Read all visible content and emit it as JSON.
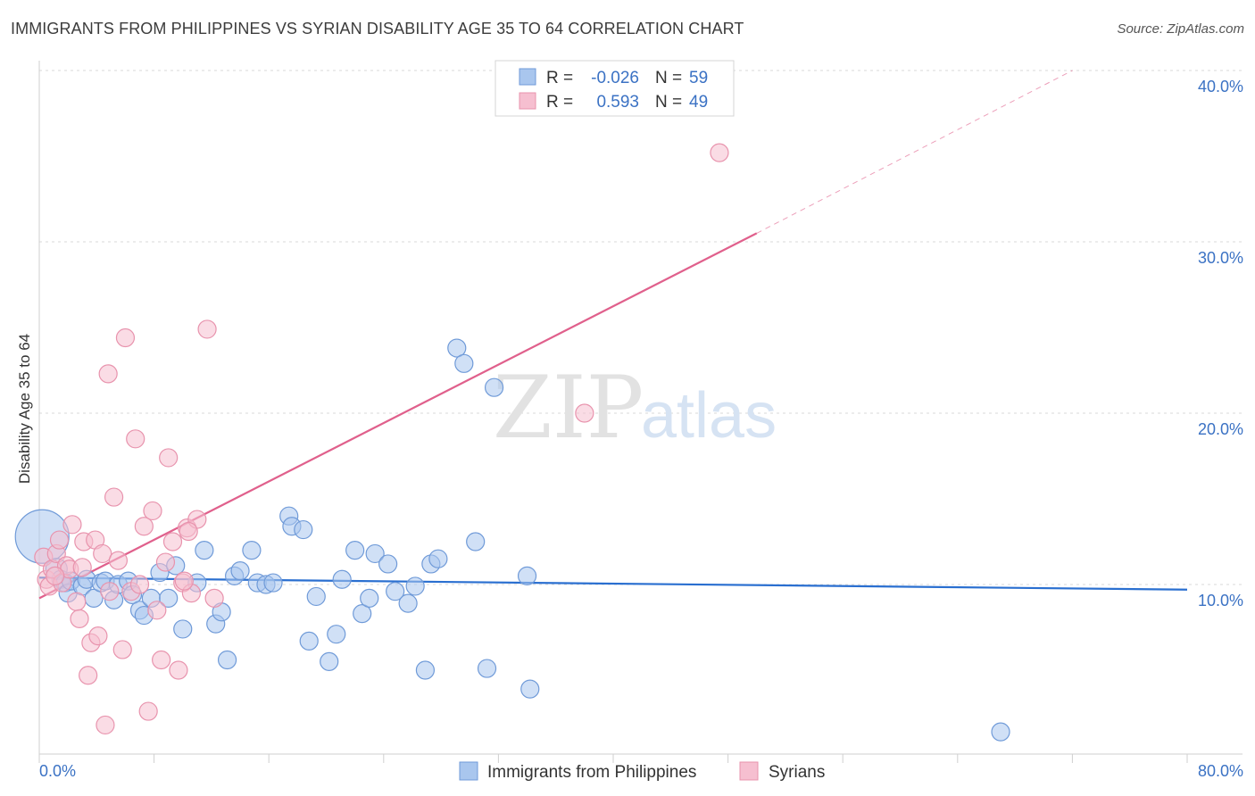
{
  "title": "IMMIGRANTS FROM PHILIPPINES VS SYRIAN DISABILITY AGE 35 TO 64 CORRELATION CHART",
  "source": "Source: ZipAtlas.com",
  "watermark": {
    "part1": "ZIP",
    "part2": "atlas"
  },
  "colors": {
    "blue_fill": "#a9c6ee",
    "blue_stroke": "#6f9ad8",
    "blue_line": "#2a6fd0",
    "pink_fill": "#f6bfd0",
    "pink_stroke": "#e893ad",
    "pink_line": "#e0608c",
    "grid": "#d8d8d8",
    "tick_text": "#3b72c4"
  },
  "legend": {
    "rows": [
      {
        "r_label": "R =",
        "r_value": "-0.026",
        "n_label": "N =",
        "n_value": "59"
      },
      {
        "r_label": "R =",
        "r_value": "0.593",
        "n_label": "N =",
        "n_value": "49"
      }
    ]
  },
  "chart_data": {
    "type": "scatter",
    "title": "IMMIGRANTS FROM PHILIPPINES VS SYRIAN DISABILITY AGE 35 TO 64 CORRELATION CHART",
    "xlabel": "",
    "ylabel": "Disability Age 35 to 64",
    "xlim": [
      0,
      80
    ],
    "ylim": [
      0,
      42
    ],
    "x_tick_labels": [
      "0.0%",
      "80.0%"
    ],
    "y_ticks": [
      10,
      20,
      30,
      40
    ],
    "y_tick_labels": [
      "10.0%",
      "20.0%",
      "30.0%",
      "40.0%"
    ],
    "grid": true,
    "legend_position": "top-center",
    "series": [
      {
        "name": "Immigrants from Philippines",
        "color": "#a9c6ee",
        "trend": {
          "x": [
            0,
            80
          ],
          "y": [
            10.4,
            9.7
          ],
          "style": "solid"
        },
        "points": [
          [
            0.2,
            12.8,
            30
          ],
          [
            1.2,
            10.9,
            12
          ],
          [
            1.5,
            10.3,
            10
          ],
          [
            1.8,
            10.1,
            10
          ],
          [
            2.0,
            9.5,
            10
          ],
          [
            2.2,
            10.2,
            10
          ],
          [
            3.0,
            9.9,
            10
          ],
          [
            3.3,
            10.3,
            10
          ],
          [
            3.8,
            9.2,
            10
          ],
          [
            4.3,
            10.1,
            10
          ],
          [
            4.6,
            10.2,
            10
          ],
          [
            5.2,
            9.1,
            10
          ],
          [
            5.5,
            10.0,
            10
          ],
          [
            6.2,
            10.2,
            10
          ],
          [
            6.5,
            9.4,
            10
          ],
          [
            7.0,
            8.5,
            10
          ],
          [
            7.3,
            8.2,
            10
          ],
          [
            7.8,
            9.2,
            10
          ],
          [
            8.4,
            10.7,
            10
          ],
          [
            9.0,
            9.2,
            10
          ],
          [
            9.5,
            11.1,
            10
          ],
          [
            10.0,
            7.4,
            10
          ],
          [
            11.0,
            10.1,
            10
          ],
          [
            11.5,
            12.0,
            10
          ],
          [
            12.3,
            7.7,
            10
          ],
          [
            12.7,
            8.4,
            10
          ],
          [
            13.1,
            5.6,
            10
          ],
          [
            13.6,
            10.5,
            10
          ],
          [
            14.0,
            10.8,
            10
          ],
          [
            14.8,
            12.0,
            10
          ],
          [
            15.2,
            10.1,
            10
          ],
          [
            15.8,
            10.0,
            10
          ],
          [
            16.3,
            10.1,
            10
          ],
          [
            17.4,
            14.0,
            10
          ],
          [
            17.6,
            13.4,
            10
          ],
          [
            18.4,
            13.2,
            10
          ],
          [
            18.8,
            6.7,
            10
          ],
          [
            19.3,
            9.3,
            10
          ],
          [
            20.2,
            5.5,
            10
          ],
          [
            20.7,
            7.1,
            10
          ],
          [
            21.1,
            10.3,
            10
          ],
          [
            22.0,
            12.0,
            10
          ],
          [
            22.5,
            8.3,
            10
          ],
          [
            23.0,
            9.2,
            10
          ],
          [
            23.4,
            11.8,
            10
          ],
          [
            24.3,
            11.2,
            10
          ],
          [
            24.8,
            9.6,
            10
          ],
          [
            25.7,
            8.9,
            10
          ],
          [
            26.2,
            9.9,
            10
          ],
          [
            26.9,
            5.0,
            10
          ],
          [
            27.3,
            11.2,
            10
          ],
          [
            27.8,
            11.5,
            10
          ],
          [
            29.1,
            23.8,
            10
          ],
          [
            29.6,
            22.9,
            10
          ],
          [
            30.4,
            12.5,
            10
          ],
          [
            31.2,
            5.1,
            10
          ],
          [
            31.7,
            21.5,
            10
          ],
          [
            34.0,
            10.5,
            10
          ],
          [
            34.2,
            3.9,
            10
          ],
          [
            67.0,
            1.4,
            10
          ]
        ]
      },
      {
        "name": "Syrians",
        "color": "#f6bfd0",
        "trend": {
          "x": [
            0,
            50
          ],
          "y": [
            9.2,
            30.5
          ],
          "style": "solid",
          "extension": {
            "x": [
              50,
              72
            ],
            "y": [
              30.5,
              40.0
            ],
            "style": "dashed"
          }
        },
        "points": [
          [
            0.3,
            11.6,
            10
          ],
          [
            0.5,
            10.3,
            10
          ],
          [
            0.7,
            9.9,
            10
          ],
          [
            0.9,
            10.9,
            10
          ],
          [
            1.2,
            11.8,
            10
          ],
          [
            1.4,
            12.6,
            10
          ],
          [
            1.6,
            10.1,
            10
          ],
          [
            1.9,
            11.1,
            10
          ],
          [
            2.1,
            10.9,
            10
          ],
          [
            2.3,
            13.5,
            10
          ],
          [
            2.6,
            9.0,
            10
          ],
          [
            2.8,
            8.0,
            10
          ],
          [
            3.1,
            12.5,
            10
          ],
          [
            3.4,
            4.7,
            10
          ],
          [
            3.6,
            6.6,
            10
          ],
          [
            3.9,
            12.6,
            10
          ],
          [
            4.1,
            7.0,
            10
          ],
          [
            4.4,
            11.8,
            10
          ],
          [
            4.6,
            1.8,
            10
          ],
          [
            4.8,
            22.3,
            10
          ],
          [
            5.2,
            15.1,
            10
          ],
          [
            5.5,
            11.4,
            10
          ],
          [
            5.8,
            6.2,
            10
          ],
          [
            6.0,
            24.4,
            10
          ],
          [
            6.4,
            9.6,
            10
          ],
          [
            6.7,
            18.5,
            10
          ],
          [
            7.0,
            10.0,
            10
          ],
          [
            7.3,
            13.4,
            10
          ],
          [
            7.6,
            2.6,
            10
          ],
          [
            7.9,
            14.3,
            10
          ],
          [
            8.2,
            8.5,
            10
          ],
          [
            8.5,
            5.6,
            10
          ],
          [
            8.8,
            11.3,
            10
          ],
          [
            9.0,
            17.4,
            10
          ],
          [
            9.3,
            12.5,
            10
          ],
          [
            9.7,
            5.0,
            10
          ],
          [
            10.0,
            10.1,
            10
          ],
          [
            10.3,
            13.3,
            10
          ],
          [
            10.6,
            9.5,
            10
          ],
          [
            11.0,
            13.8,
            10
          ],
          [
            10.4,
            13.1,
            10
          ],
          [
            10.1,
            10.2,
            10
          ],
          [
            11.7,
            24.9,
            10
          ],
          [
            12.2,
            9.2,
            10
          ],
          [
            3.0,
            11.0,
            10
          ],
          [
            1.1,
            10.5,
            10
          ],
          [
            4.9,
            9.6,
            10
          ],
          [
            38.0,
            20.0,
            10
          ],
          [
            47.4,
            35.2,
            10
          ]
        ]
      }
    ]
  },
  "bottom_legend": {
    "items": [
      {
        "label": "Immigrants from Philippines"
      },
      {
        "label": "Syrians"
      }
    ]
  }
}
